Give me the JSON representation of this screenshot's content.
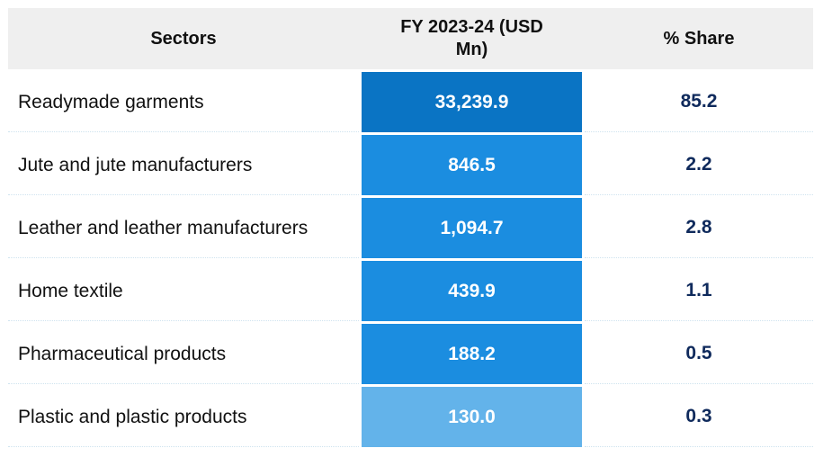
{
  "chart_data": {
    "type": "table",
    "columns": [
      "Sectors",
      "FY 2023-24 (USD Mn)",
      "% Share"
    ],
    "rows": [
      {
        "sector": "Readymade garments",
        "value": "33,239.9",
        "share": "85.2",
        "amount": 33239.9
      },
      {
        "sector": "Jute and jute manufacturers",
        "value": "846.5",
        "share": "2.2",
        "amount": 846.5
      },
      {
        "sector": "Leather and leather manufacturers",
        "value": "1,094.7",
        "share": "2.8",
        "amount": 1094.7
      },
      {
        "sector": "Home textile",
        "value": "439.9",
        "share": "1.1",
        "amount": 439.9
      },
      {
        "sector": "Pharmaceutical products",
        "value": "188.2",
        "share": "0.5",
        "amount": 188.2
      },
      {
        "sector": "Plastic and plastic products",
        "value": "130.0",
        "share": "0.3",
        "amount": 130.0
      }
    ],
    "value_colors": [
      "#0a74c4",
      "#1b8de0",
      "#1b8de0",
      "#1b8de0",
      "#1b8de0",
      "#63b3ea"
    ]
  }
}
